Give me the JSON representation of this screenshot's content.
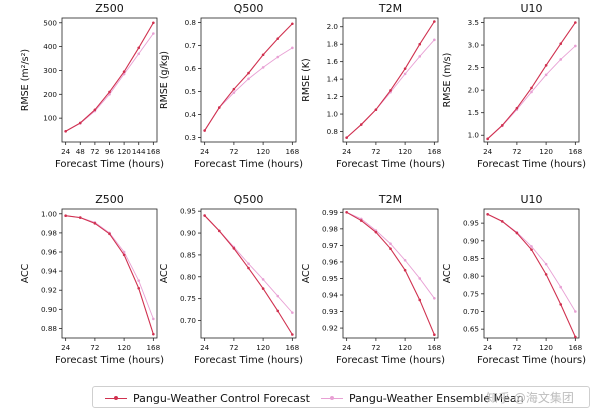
{
  "legend": {
    "control_label": "Pangu-Weather Control Forecast",
    "ensemble_label": "Pangu-Weather Ensemble Mean"
  },
  "watermark": "知乎 @海文集团",
  "colors": {
    "control": "#d0314f",
    "ensemble": "#e8a0d4"
  },
  "chart_data": [
    {
      "type": "line",
      "title": "Z500",
      "xlabel": "Forecast Time (hours)",
      "ylabel": "RMSE (m²/s²)",
      "ylim": [
        0,
        520
      ],
      "yticks": [
        100,
        200,
        300,
        400,
        500
      ],
      "x": [
        24,
        48,
        72,
        96,
        120,
        144,
        168
      ],
      "xticks": [
        24,
        48,
        72,
        96,
        120,
        144,
        168
      ],
      "series": [
        {
          "name": "Pangu-Weather Control Forecast",
          "values": [
            45,
            80,
            135,
            210,
            295,
            395,
            500
          ]
        },
        {
          "name": "Pangu-Weather Ensemble Mean",
          "values": [
            45,
            78,
            130,
            200,
            285,
            370,
            455
          ]
        }
      ]
    },
    {
      "type": "line",
      "title": "Q500",
      "xlabel": "Forecast Time (hours)",
      "ylabel": "RMSE (g/kg)",
      "ylim": [
        0.28,
        0.82
      ],
      "yticks": [
        0.3,
        0.4,
        0.5,
        0.6,
        0.7,
        0.8
      ],
      "x": [
        24,
        48,
        72,
        96,
        120,
        144,
        168
      ],
      "xticks": [
        24,
        72,
        120,
        168
      ],
      "series": [
        {
          "name": "Pangu-Weather Control Forecast",
          "values": [
            0.33,
            0.43,
            0.51,
            0.58,
            0.66,
            0.73,
            0.795
          ]
        },
        {
          "name": "Pangu-Weather Ensemble Mean",
          "values": [
            0.33,
            0.43,
            0.495,
            0.555,
            0.605,
            0.65,
            0.69
          ]
        }
      ]
    },
    {
      "type": "line",
      "title": "T2M",
      "xlabel": "Forecast Time (hours)",
      "ylabel": "RMSE (K)",
      "ylim": [
        0.68,
        2.1
      ],
      "yticks": [
        0.8,
        1.0,
        1.2,
        1.4,
        1.6,
        1.8,
        2.0
      ],
      "x": [
        24,
        48,
        72,
        96,
        120,
        144,
        168
      ],
      "xticks": [
        24,
        72,
        120,
        168
      ],
      "series": [
        {
          "name": "Pangu-Weather Control Forecast",
          "values": [
            0.73,
            0.88,
            1.05,
            1.27,
            1.52,
            1.8,
            2.06
          ]
        },
        {
          "name": "Pangu-Weather Ensemble Mean",
          "values": [
            0.73,
            0.88,
            1.05,
            1.25,
            1.46,
            1.66,
            1.85
          ]
        }
      ]
    },
    {
      "type": "line",
      "title": "U10",
      "xlabel": "Forecast Time (hours)",
      "ylabel": "RMSE (m/s)",
      "ylim": [
        0.85,
        3.6
      ],
      "yticks": [
        1.0,
        1.5,
        2.0,
        2.5,
        3.0,
        3.5
      ],
      "x": [
        24,
        48,
        72,
        96,
        120,
        144,
        168
      ],
      "xticks": [
        24,
        72,
        120,
        168
      ],
      "series": [
        {
          "name": "Pangu-Weather Control Forecast",
          "values": [
            0.92,
            1.22,
            1.6,
            2.05,
            2.55,
            3.03,
            3.5
          ]
        },
        {
          "name": "Pangu-Weather Ensemble Mean",
          "values": [
            0.92,
            1.21,
            1.57,
            1.96,
            2.34,
            2.68,
            2.98
          ]
        }
      ]
    },
    {
      "type": "line",
      "title": "Z500",
      "xlabel": "Forecast Time (hours)",
      "ylabel": "ACC",
      "ylim": [
        0.87,
        1.005
      ],
      "yticks": [
        0.88,
        0.9,
        0.92,
        0.94,
        0.96,
        0.98,
        1.0
      ],
      "x": [
        24,
        48,
        72,
        96,
        120,
        144,
        168
      ],
      "xticks": [
        24,
        72,
        120,
        168
      ],
      "series": [
        {
          "name": "Pangu-Weather Control Forecast",
          "values": [
            0.998,
            0.996,
            0.99,
            0.979,
            0.957,
            0.922,
            0.874
          ]
        },
        {
          "name": "Pangu-Weather Ensemble Mean",
          "values": [
            0.998,
            0.996,
            0.991,
            0.98,
            0.96,
            0.93,
            0.89
          ]
        }
      ]
    },
    {
      "type": "line",
      "title": "Q500",
      "xlabel": "Forecast Time (hours)",
      "ylabel": "ACC",
      "ylim": [
        0.66,
        0.955
      ],
      "yticks": [
        0.7,
        0.75,
        0.8,
        0.85,
        0.9,
        0.95
      ],
      "x": [
        24,
        48,
        72,
        96,
        120,
        144,
        168
      ],
      "xticks": [
        24,
        72,
        120,
        168
      ],
      "series": [
        {
          "name": "Pangu-Weather Control Forecast",
          "values": [
            0.94,
            0.905,
            0.865,
            0.82,
            0.773,
            0.722,
            0.668
          ]
        },
        {
          "name": "Pangu-Weather Ensemble Mean",
          "values": [
            0.94,
            0.905,
            0.868,
            0.83,
            0.794,
            0.756,
            0.718
          ]
        }
      ]
    },
    {
      "type": "line",
      "title": "T2M",
      "xlabel": "Forecast Time (hours)",
      "ylabel": "ACC",
      "ylim": [
        0.914,
        0.992
      ],
      "yticks": [
        0.92,
        0.93,
        0.94,
        0.95,
        0.96,
        0.97,
        0.98,
        0.99
      ],
      "x": [
        24,
        48,
        72,
        96,
        120,
        144,
        168
      ],
      "xticks": [
        24,
        72,
        120,
        168
      ],
      "series": [
        {
          "name": "Pangu-Weather Control Forecast",
          "values": [
            0.99,
            0.985,
            0.978,
            0.968,
            0.955,
            0.937,
            0.916
          ]
        },
        {
          "name": "Pangu-Weather Ensemble Mean",
          "values": [
            0.99,
            0.986,
            0.979,
            0.971,
            0.961,
            0.95,
            0.938
          ]
        }
      ]
    },
    {
      "type": "line",
      "title": "U10",
      "xlabel": "Forecast Time (hours)",
      "ylabel": "ACC",
      "ylim": [
        0.625,
        0.99
      ],
      "yticks": [
        0.65,
        0.7,
        0.75,
        0.8,
        0.85,
        0.9,
        0.95
      ],
      "x": [
        24,
        48,
        72,
        96,
        120,
        144,
        168
      ],
      "xticks": [
        24,
        72,
        120,
        168
      ],
      "series": [
        {
          "name": "Pangu-Weather Control Forecast",
          "values": [
            0.975,
            0.955,
            0.922,
            0.875,
            0.805,
            0.72,
            0.628
          ]
        },
        {
          "name": "Pangu-Weather Ensemble Mean",
          "values": [
            0.975,
            0.955,
            0.924,
            0.884,
            0.834,
            0.769,
            0.7
          ]
        }
      ]
    }
  ]
}
